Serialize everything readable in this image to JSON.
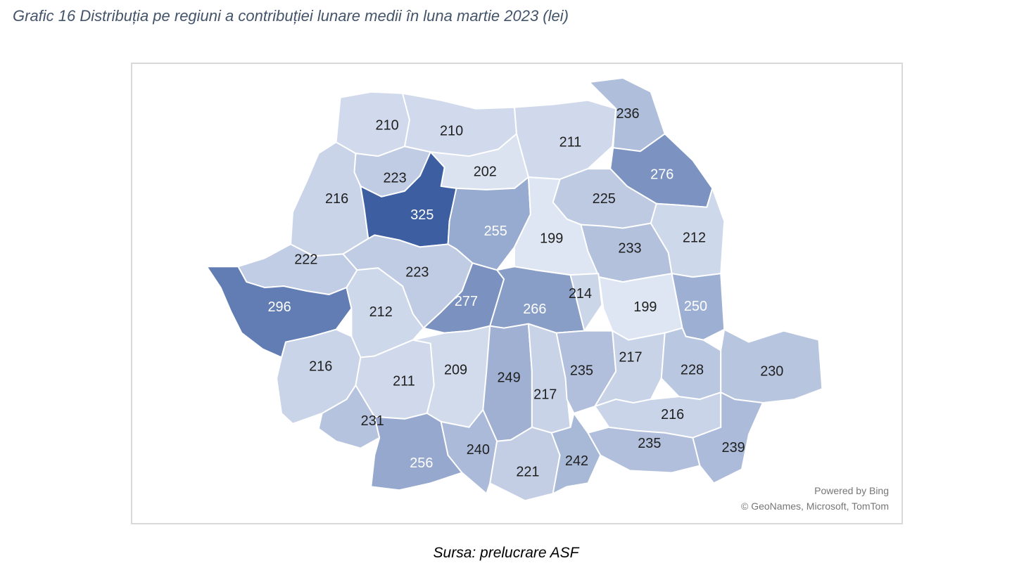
{
  "caption": "Grafic 16 Distribuția pe regiuni a contribuției lunare medii în luna martie 2023 (lei)",
  "source": "Sursa: prelucrare ASF",
  "attribution": {
    "powered_by": "Powered by Bing",
    "copyright": "© GeoNames, Microsoft, TomTom"
  },
  "colors": {
    "scale_min": "#dfe6f3",
    "scale_max": "#3d5ea1",
    "label_dark": "#1f1f1f",
    "label_light": "#ffffff",
    "frame_border": "#d9d9d9"
  },
  "chart_data": {
    "type": "choropleth",
    "region_values": [
      {
        "id": "satu-mare",
        "value": 210
      },
      {
        "id": "maramures",
        "value": 210
      },
      {
        "id": "suceava",
        "value": 211
      },
      {
        "id": "botosani",
        "value": 236
      },
      {
        "id": "salaj",
        "value": 223
      },
      {
        "id": "bistrita-nasaud",
        "value": 202
      },
      {
        "id": "iasi",
        "value": 276
      },
      {
        "id": "bihor",
        "value": 216
      },
      {
        "id": "cluj",
        "value": 325
      },
      {
        "id": "neamt",
        "value": 225
      },
      {
        "id": "mures",
        "value": 255
      },
      {
        "id": "harghita",
        "value": 199
      },
      {
        "id": "bacau",
        "value": 233
      },
      {
        "id": "vaslui",
        "value": 212
      },
      {
        "id": "arad",
        "value": 222
      },
      {
        "id": "alba",
        "value": 223
      },
      {
        "id": "timis",
        "value": 296
      },
      {
        "id": "hunedoara",
        "value": 212
      },
      {
        "id": "sibiu",
        "value": 277
      },
      {
        "id": "brasov",
        "value": 266
      },
      {
        "id": "covasna",
        "value": 214
      },
      {
        "id": "vrancea",
        "value": 199
      },
      {
        "id": "galati",
        "value": 250
      },
      {
        "id": "caras-severin",
        "value": 216
      },
      {
        "id": "gorj",
        "value": 211
      },
      {
        "id": "valcea",
        "value": 209
      },
      {
        "id": "arges",
        "value": 249
      },
      {
        "id": "dambovita",
        "value": 217
      },
      {
        "id": "prahova",
        "value": 235
      },
      {
        "id": "buzau",
        "value": 217
      },
      {
        "id": "braila",
        "value": 228
      },
      {
        "id": "tulcea",
        "value": 230
      },
      {
        "id": "ialomita",
        "value": 216
      },
      {
        "id": "mehedinti",
        "value": 231
      },
      {
        "id": "dolj",
        "value": 256
      },
      {
        "id": "olt",
        "value": 240
      },
      {
        "id": "teleorman",
        "value": 221
      },
      {
        "id": "giurgiu",
        "value": 242
      },
      {
        "id": "calarasi",
        "value": 235
      },
      {
        "id": "constanta",
        "value": 239
      }
    ]
  }
}
